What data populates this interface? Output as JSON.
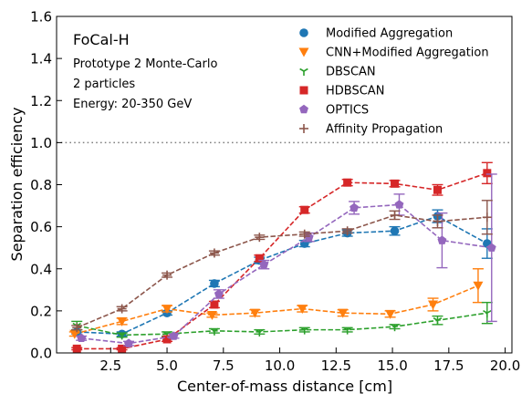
{
  "chart_data": {
    "type": "scatter",
    "xlabel": "Center-of-mass distance [cm]",
    "ylabel": "Separation efficiency",
    "xlim": [
      0.1,
      20.3
    ],
    "ylim": [
      0,
      1.6
    ],
    "xticks": [
      2.5,
      5.0,
      7.5,
      10.0,
      12.5,
      15.0,
      17.5,
      20.0
    ],
    "xtick_labels": [
      "2.5",
      "5.0",
      "7.5",
      "10.0",
      "12.5",
      "15.0",
      "17.5",
      "20.0"
    ],
    "yticks": [
      0.0,
      0.2,
      0.4,
      0.6,
      0.8,
      1.0,
      1.2,
      1.4,
      1.6
    ],
    "ytick_labels": [
      "0.0",
      "0.2",
      "0.4",
      "0.6",
      "0.8",
      "1.0",
      "1.2",
      "1.4",
      "1.6"
    ],
    "reference_line": 1.0,
    "grid": false,
    "legend_position": "upper right",
    "annotations": [
      "FoCal-H",
      "Prototype 2 Monte-Carlo",
      "2 particles",
      "Energy: 20-350 GeV"
    ],
    "series": [
      {
        "name": "Modified Aggregation",
        "color": "#1f77b4",
        "marker": "circle",
        "x": [
          1.0,
          3.0,
          5.0,
          7.1,
          9.1,
          11.1,
          13.0,
          15.1,
          17.0,
          19.2
        ],
        "y": [
          0.1,
          0.09,
          0.19,
          0.33,
          0.44,
          0.52,
          0.57,
          0.58,
          0.65,
          0.52
        ],
        "err": [
          0.01,
          0.01,
          0.01,
          0.015,
          0.015,
          0.015,
          0.015,
          0.02,
          0.03,
          0.07
        ]
      },
      {
        "name": "CNN+Modified Aggregation",
        "color": "#ff7f0e",
        "marker": "triangle-down",
        "x": [
          0.9,
          3.0,
          5.0,
          7.0,
          8.9,
          11.0,
          12.8,
          14.9,
          16.8,
          18.8
        ],
        "y": [
          0.09,
          0.15,
          0.21,
          0.18,
          0.19,
          0.21,
          0.19,
          0.185,
          0.23,
          0.32
        ],
        "err": [
          0.01,
          0.015,
          0.015,
          0.01,
          0.015,
          0.015,
          0.015,
          0.015,
          0.03,
          0.08
        ]
      },
      {
        "name": "DBSCAN",
        "color": "#2ca02c",
        "marker": "tri-down",
        "x": [
          1.0,
          3.0,
          5.0,
          7.1,
          9.1,
          11.1,
          13.0,
          15.1,
          17.0,
          19.2
        ],
        "y": [
          0.13,
          0.085,
          0.09,
          0.105,
          0.1,
          0.11,
          0.11,
          0.125,
          0.155,
          0.19
        ],
        "err": [
          0.02,
          0.01,
          0.01,
          0.01,
          0.01,
          0.01,
          0.01,
          0.01,
          0.02,
          0.05
        ]
      },
      {
        "name": "HDBSCAN",
        "color": "#d62728",
        "marker": "square",
        "x": [
          1.0,
          3.0,
          5.0,
          7.1,
          9.1,
          11.1,
          13.0,
          15.1,
          17.0,
          19.2
        ],
        "y": [
          0.02,
          0.02,
          0.065,
          0.23,
          0.45,
          0.68,
          0.81,
          0.805,
          0.775,
          0.855
        ],
        "err": [
          0.005,
          0.005,
          0.01,
          0.015,
          0.015,
          0.015,
          0.015,
          0.015,
          0.025,
          0.05
        ]
      },
      {
        "name": "OPTICS",
        "color": "#9467bd",
        "marker": "pentagon",
        "x": [
          1.2,
          3.3,
          5.3,
          7.3,
          9.3,
          11.3,
          13.3,
          15.3,
          17.2,
          19.4
        ],
        "y": [
          0.07,
          0.045,
          0.08,
          0.28,
          0.42,
          0.55,
          0.69,
          0.705,
          0.535,
          0.5
        ],
        "err": [
          0.01,
          0.01,
          0.01,
          0.02,
          0.02,
          0.02,
          0.03,
          0.05,
          0.13,
          0.35
        ]
      },
      {
        "name": "Affinity Propagation",
        "color": "#8c564b",
        "marker": "plus",
        "x": [
          1.0,
          3.0,
          5.0,
          7.1,
          9.1,
          11.1,
          13.0,
          15.1,
          17.0,
          19.2
        ],
        "y": [
          0.12,
          0.21,
          0.37,
          0.475,
          0.55,
          0.565,
          0.58,
          0.655,
          0.625,
          0.645
        ],
        "err": [
          0.01,
          0.01,
          0.01,
          0.01,
          0.01,
          0.01,
          0.01,
          0.02,
          0.03,
          0.08
        ]
      }
    ]
  }
}
